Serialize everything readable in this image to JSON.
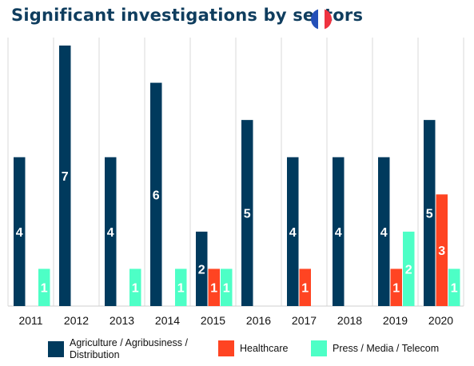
{
  "title": "Significant investigations by sectors",
  "colors": {
    "title": "#0f3d5e",
    "agriculture": "#003a5d",
    "healthcare": "#ff4422",
    "press": "#4dffc6",
    "grid": "#d9d9d9",
    "flag_blue": "#2450b8",
    "flag_white": "#ffffff",
    "flag_red": "#ef3340"
  },
  "icons": {
    "flag": "france-flag-icon"
  },
  "chart_data": {
    "type": "bar",
    "title": "Significant investigations by sectors",
    "xlabel": "",
    "ylabel": "",
    "ylim": [
      0,
      7
    ],
    "grid": "vertical category separators",
    "legend_position": "bottom",
    "categories": [
      "2011",
      "2012",
      "2013",
      "2014",
      "2015",
      "2016",
      "2017",
      "2018",
      "2019",
      "2020"
    ],
    "series": [
      {
        "name": "Agriculture / Agribusiness / Distribution",
        "color": "#003a5d",
        "values": [
          4,
          7,
          4,
          6,
          2,
          5,
          4,
          4,
          4,
          5
        ]
      },
      {
        "name": "Healthcare",
        "color": "#ff4422",
        "values": [
          0,
          0,
          0,
          0,
          1,
          0,
          1,
          0,
          1,
          3
        ]
      },
      {
        "name": "Press / Media / Telecom",
        "color": "#4dffc6",
        "values": [
          1,
          0,
          1,
          1,
          1,
          0,
          0,
          0,
          2,
          1
        ]
      }
    ]
  },
  "legend": {
    "agriculture": {
      "line1": "Agriculture / Agribusiness /",
      "line2": "Distribution"
    },
    "healthcare": "Healthcare",
    "press": "Press / Media / Telecom"
  }
}
